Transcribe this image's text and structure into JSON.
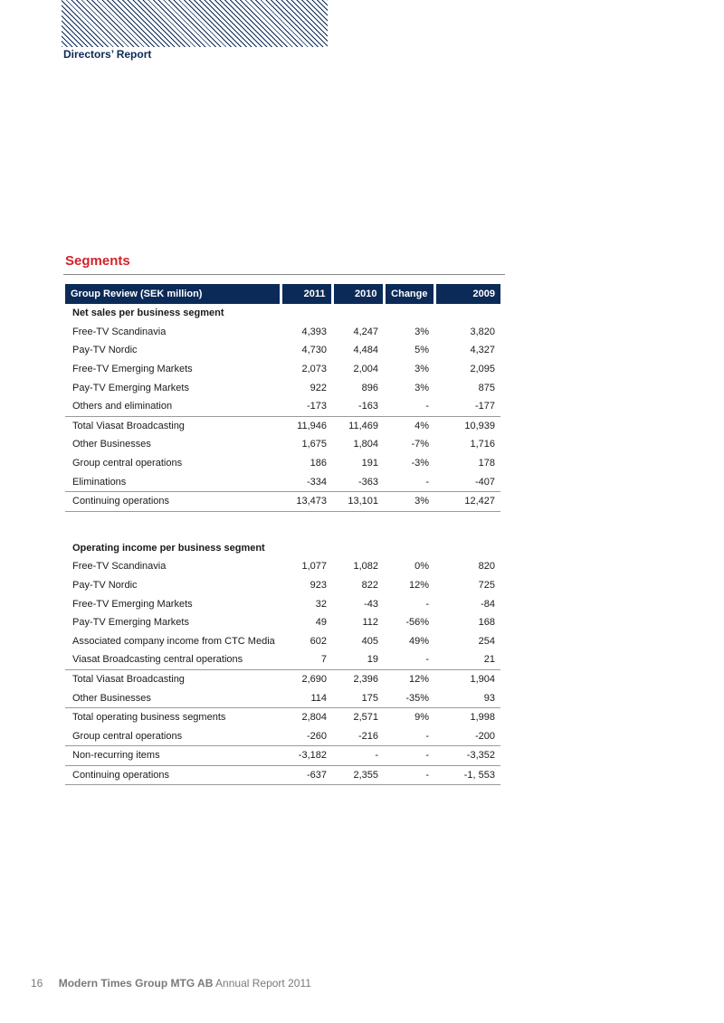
{
  "header": {
    "section": "Directors’ Report"
  },
  "segments_title": "Segments",
  "table": {
    "columns": [
      "Group Review (SEK million)",
      "2011",
      "2010",
      "Change",
      "2009"
    ],
    "net_sales": {
      "heading": "Net sales per business segment",
      "rows": [
        [
          "Free-TV Scandinavia",
          "4,393",
          "4,247",
          "3%",
          "3,820"
        ],
        [
          "Pay-TV Nordic",
          "4,730",
          "4,484",
          "5%",
          "4,327"
        ],
        [
          "Free-TV Emerging Markets",
          "2,073",
          "2,004",
          "3%",
          "2,095"
        ],
        [
          "Pay-TV Emerging Markets",
          "922",
          "896",
          "3%",
          "875"
        ],
        [
          "Others and elimination",
          "-173",
          "-163",
          "-",
          "-177"
        ],
        [
          "Total Viasat Broadcasting",
          "11,946",
          "11,469",
          "4%",
          "10,939"
        ],
        [
          "Other Businesses",
          "1,675",
          "1,804",
          "-7%",
          "1,716"
        ],
        [
          "Group central operations",
          "186",
          "191",
          "-3%",
          "178"
        ],
        [
          "Eliminations",
          "-334",
          "-363",
          "-",
          "-407"
        ],
        [
          "Continuing operations",
          "13,473",
          "13,101",
          "3%",
          "12,427"
        ]
      ]
    },
    "operating_income": {
      "heading": "Operating income per business segment",
      "rows": [
        [
          "Free-TV Scandinavia",
          "1,077",
          "1,082",
          "0%",
          "820"
        ],
        [
          "Pay-TV Nordic",
          "923",
          "822",
          "12%",
          "725"
        ],
        [
          "Free-TV Emerging Markets",
          "32",
          "-43",
          "-",
          "-84"
        ],
        [
          "Pay-TV Emerging Markets",
          "49",
          "112",
          "-56%",
          "168"
        ],
        [
          "Associated company income from CTC Media",
          "602",
          "405",
          "49%",
          "254"
        ],
        [
          "Viasat Broadcasting central operations",
          "7",
          "19",
          "-",
          "21"
        ],
        [
          "Total Viasat Broadcasting",
          "2,690",
          "2,396",
          "12%",
          "1,904"
        ],
        [
          "Other Businesses",
          "114",
          "175",
          "-35%",
          "93"
        ],
        [
          "Total operating business segments",
          "2,804",
          "2,571",
          "9%",
          "1,998"
        ],
        [
          "Group central operations",
          "-260",
          "-216",
          "-",
          "-200"
        ],
        [
          "Non-recurring items",
          "-3,182",
          "-",
          "-",
          "-3,352"
        ],
        [
          "Continuing operations",
          "-637",
          "2,355",
          "-",
          "-1, 553"
        ]
      ]
    }
  },
  "footer": {
    "page": "16",
    "company": "Modern Times Group MTG AB",
    "report": "Annual Report 2011"
  }
}
